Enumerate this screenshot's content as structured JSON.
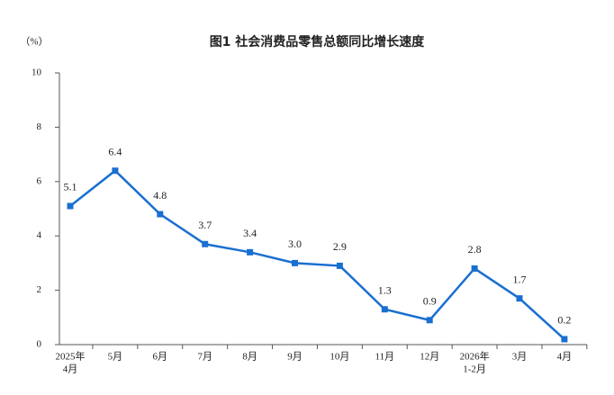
{
  "chart_data": {
    "type": "line",
    "title": "图1  社会消费品零售总额同比增长速度",
    "y_unit": "（%）",
    "categories": [
      [
        "2025年",
        "4月"
      ],
      "5月",
      "6月",
      "7月",
      "8月",
      "9月",
      "10月",
      "11月",
      "12月",
      [
        "2026年",
        "1-2月"
      ],
      "3月",
      "4月"
    ],
    "series": [
      {
        "name": "同比增长速度",
        "color": "#1a6fd0",
        "values": [
          5.1,
          6.4,
          4.8,
          3.7,
          3.4,
          3.0,
          2.9,
          1.3,
          0.9,
          2.8,
          1.7,
          0.2
        ],
        "value_labels": [
          "5.1",
          "6.4",
          "4.8",
          "3.7",
          "3.4",
          "3.0",
          "2.9",
          "1.3",
          "0.9",
          "2.8",
          "1.7",
          "0.2"
        ]
      }
    ],
    "ylim": [
      0,
      10
    ],
    "yticks": [
      0,
      2,
      4,
      6,
      8,
      10
    ],
    "grid": false
  }
}
